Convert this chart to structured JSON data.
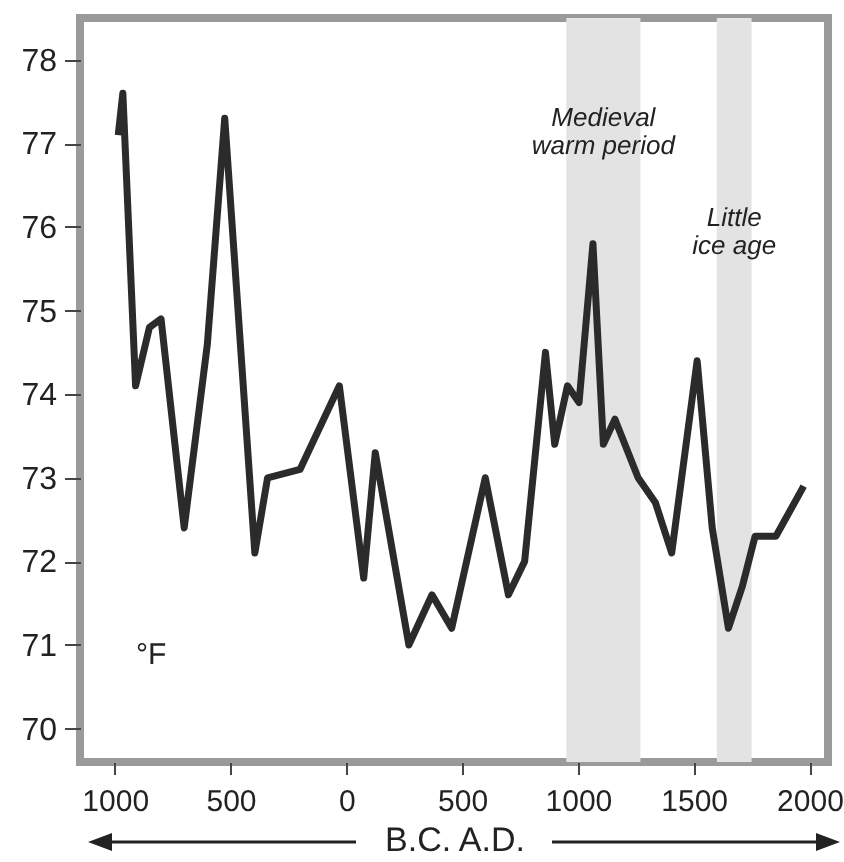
{
  "chart_data": {
    "type": "line",
    "xlabel": "B.C.   A.D.",
    "x": [
      -985,
      -965,
      -910,
      -850,
      -800,
      -700,
      -600,
      -525,
      -395,
      -340,
      -200,
      -30,
      75,
      125,
      270,
      370,
      455,
      600,
      700,
      770,
      860,
      900,
      955,
      1005,
      1065,
      1110,
      1160,
      1260,
      1335,
      1405,
      1515,
      1580,
      1650,
      1710,
      1765,
      1855,
      1975
    ],
    "series": [
      {
        "color": "#2b2b2b",
        "values": [
          77.1,
          77.6,
          74.1,
          74.8,
          74.9,
          72.4,
          74.6,
          77.3,
          72.1,
          73.0,
          73.1,
          74.1,
          71.8,
          73.3,
          71.0,
          71.6,
          71.2,
          73.0,
          71.6,
          72.0,
          74.5,
          73.4,
          74.1,
          73.9,
          75.8,
          73.4,
          73.7,
          73.0,
          72.7,
          72.1,
          74.4,
          72.4,
          71.2,
          71.7,
          72.3,
          72.3,
          72.9
        ]
      }
    ],
    "xlim": [
      -1150,
      2080
    ],
    "ylim": [
      69.6,
      78.5
    ],
    "xticks": [
      {
        "value": -1000,
        "label": "1000"
      },
      {
        "value": -500,
        "label": "500"
      },
      0,
      500,
      1000,
      1500,
      2000
    ],
    "yticks": [
      70,
      71,
      72,
      73,
      74,
      75,
      76,
      77,
      78
    ],
    "bands": [
      {
        "axis": "x",
        "from": 950,
        "to": 1270,
        "label": "Medieval warm period",
        "color": "#e3e3e3"
      },
      {
        "axis": "x",
        "from": 1600,
        "to": 1750,
        "label": "Little ice age",
        "color": "#e3e3e3"
      }
    ],
    "annotations": [
      "°F"
    ],
    "grid": false,
    "marker": "none",
    "line_style": "solid"
  }
}
